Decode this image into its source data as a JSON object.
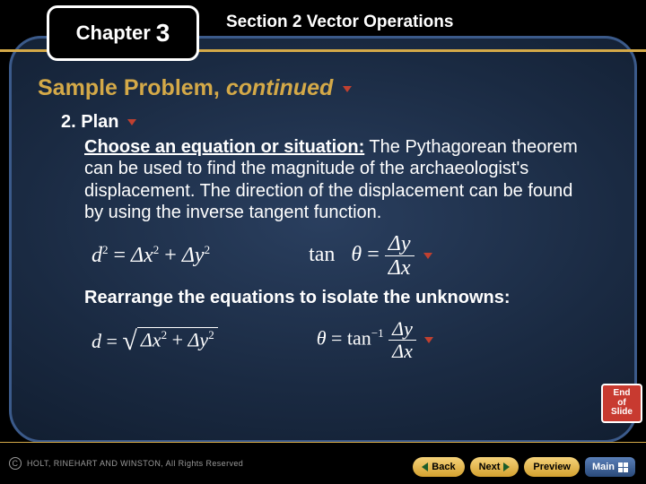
{
  "header": {
    "chapter_label": "Chapter",
    "chapter_number": "3",
    "section_label": "Section 2  Vector Operations"
  },
  "content": {
    "heading_main": "Sample Problem,",
    "heading_ital": "continued",
    "plan_number": "2.",
    "plan_label": "Plan",
    "instruction_underlined": "Choose an equation or situation:",
    "instruction_rest": " The Pythagorean theorem can be used to find the magnitude of the archaeologist's displacement. The direction of the displacement can be found by using the inverse tangent function.",
    "rearrange_text": "Rearrange the equations to isolate the unknowns:",
    "equations": {
      "eq1_left": {
        "lhs": "d",
        "lhs_sup": "2",
        "r1": "Δx",
        "r1_sup": "2",
        "r2": "Δy",
        "r2_sup": "2"
      },
      "eq1_right": {
        "fn": "tan",
        "theta": "θ",
        "num": "Δy",
        "den": "Δx"
      },
      "eq2_left": {
        "lhs": "d",
        "r1": "Δx",
        "r1_sup": "2",
        "r2": "Δy",
        "r2_sup": "2"
      },
      "eq2_right": {
        "theta": "θ",
        "fn": "tan",
        "sup": "−1",
        "num": "Δy",
        "den": "Δx"
      }
    }
  },
  "end_badge": {
    "l1": "End",
    "l2": "of",
    "l3": "Slide"
  },
  "footer": {
    "copyright": "HOLT, RINEHART AND WINSTON, All Rights Reserved",
    "nav": {
      "back": "Back",
      "next": "Next",
      "preview": "Preview",
      "main": "Main"
    }
  },
  "colors": {
    "gold": "#d4a948",
    "heading_gold": "#d4a948",
    "red_arrow": "#c04030",
    "end_badge_bg": "#c83a30",
    "slide_border": "#3b5a8a"
  }
}
